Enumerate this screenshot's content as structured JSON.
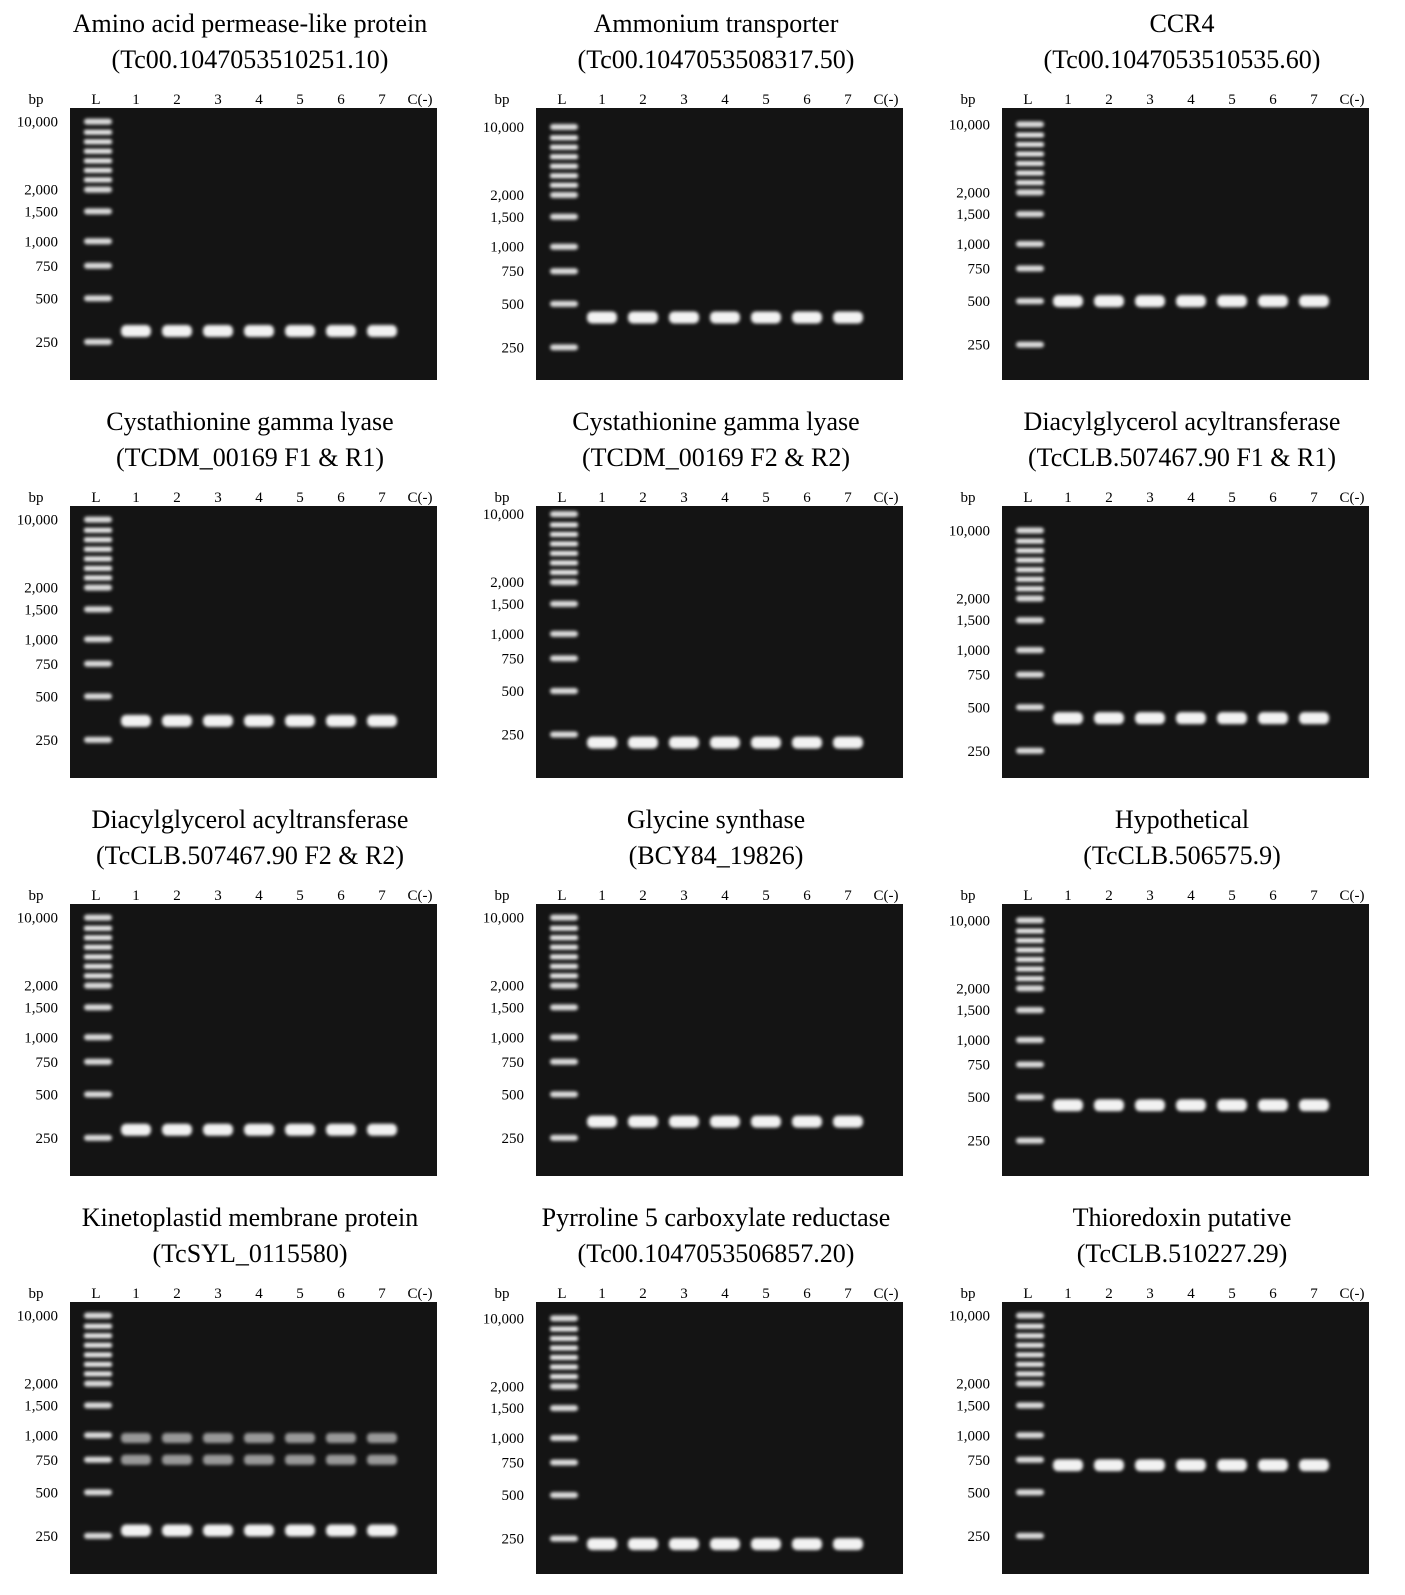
{
  "panels": [
    {
      "title": [
        "Amino acid permease-like protein",
        "(Tc00.1047053510251.10)"
      ],
      "bp_header": "bp",
      "lanes": [
        "L",
        "1",
        "2",
        "3",
        "4",
        "5",
        "6",
        "7",
        "C(-)"
      ],
      "bp_labels": [
        "10,000",
        "2,000",
        "1,500",
        "1,000",
        "750",
        "500",
        "250"
      ]
    },
    {
      "title": [
        "Ammonium transporter",
        "(Tc00.1047053508317.50)"
      ],
      "bp_header": "bp",
      "lanes": [
        "L",
        "1",
        "2",
        "3",
        "4",
        "5",
        "6",
        "7",
        "C(-)"
      ],
      "bp_labels": [
        "10,000",
        "2,000",
        "1,500",
        "1,000",
        "750",
        "500",
        "250"
      ]
    },
    {
      "title": [
        "CCR4",
        "(Tc00.1047053510535.60)"
      ],
      "bp_header": "bp",
      "lanes": [
        "L",
        "1",
        "2",
        "3",
        "4",
        "5",
        "6",
        "7",
        "C(-)"
      ],
      "bp_labels": [
        "10,000",
        "2,000",
        "1,500",
        "1,000",
        "750",
        "500",
        "250"
      ]
    },
    {
      "title": [
        "Cystathionine gamma lyase",
        "(TCDM_00169 F1 & R1)"
      ],
      "bp_header": "bp",
      "lanes": [
        "L",
        "1",
        "2",
        "3",
        "4",
        "5",
        "6",
        "7",
        "C(-)"
      ],
      "bp_labels": [
        "10,000",
        "2,000",
        "1,500",
        "1,000",
        "750",
        "500",
        "250"
      ]
    },
    {
      "title": [
        "Cystathionine gamma lyase",
        "(TCDM_00169 F2 & R2)"
      ],
      "bp_header": "bp",
      "lanes": [
        "L",
        "1",
        "2",
        "3",
        "4",
        "5",
        "6",
        "7",
        "C(-)"
      ],
      "bp_labels": [
        "10,000",
        "2,000",
        "1,500",
        "1,000",
        "750",
        "500",
        "250"
      ]
    },
    {
      "title": [
        "Diacylglycerol acyltransferase",
        "(TcCLB.507467.90 F1 & R1)"
      ],
      "bp_header": "bp",
      "lanes": [
        "L",
        "1",
        "2",
        "3",
        "4",
        "5",
        "6",
        "7",
        "C(-)"
      ],
      "bp_labels": [
        "10,000",
        "2,000",
        "1,500",
        "1,000",
        "750",
        "500",
        "250"
      ]
    },
    {
      "title": [
        "Diacylglycerol acyltransferase",
        "(TcCLB.507467.90 F2 & R2)"
      ],
      "bp_header": "bp",
      "lanes": [
        "L",
        "1",
        "2",
        "3",
        "4",
        "5",
        "6",
        "7",
        "C(-)"
      ],
      "bp_labels": [
        "10,000",
        "2,000",
        "1,500",
        "1,000",
        "750",
        "500",
        "250"
      ]
    },
    {
      "title": [
        "Glycine synthase",
        "(BCY84_19826)"
      ],
      "bp_header": "bp",
      "lanes": [
        "L",
        "1",
        "2",
        "3",
        "4",
        "5",
        "6",
        "7",
        "C(-)"
      ],
      "bp_labels": [
        "10,000",
        "2,000",
        "1,500",
        "1,000",
        "750",
        "500",
        "250"
      ]
    },
    {
      "title": [
        "Hypothetical",
        "(TcCLB.506575.9)"
      ],
      "bp_header": "bp",
      "lanes": [
        "L",
        "1",
        "2",
        "3",
        "4",
        "5",
        "6",
        "7",
        "C(-)"
      ],
      "bp_labels": [
        "10,000",
        "2,000",
        "1,500",
        "1,000",
        "750",
        "500",
        "250"
      ]
    },
    {
      "title": [
        "Kinetoplastid membrane protein",
        "(TcSYL_0115580)"
      ],
      "bp_header": "bp",
      "lanes": [
        "L",
        "1",
        "2",
        "3",
        "4",
        "5",
        "6",
        "7",
        "C(-)"
      ],
      "bp_labels": [
        "10,000",
        "2,000",
        "1,500",
        "1,000",
        "750",
        "500",
        "250"
      ]
    },
    {
      "title": [
        "Pyrroline 5 carboxylate reductase",
        "(Tc00.1047053506857.20)"
      ],
      "bp_header": "bp",
      "lanes": [
        "L",
        "1",
        "2",
        "3",
        "4",
        "5",
        "6",
        "7",
        "C(-)"
      ],
      "bp_labels": [
        "10,000",
        "2,000",
        "1,500",
        "1,000",
        "750",
        "500",
        "250"
      ]
    },
    {
      "title": [
        "Thioredoxin putative",
        "(TcCLB.510227.29)"
      ],
      "bp_header": "bp",
      "lanes": [
        "L",
        "1",
        "2",
        "3",
        "4",
        "5",
        "6",
        "7",
        "C(-)"
      ],
      "bp_labels": [
        "10,000",
        "2,000",
        "1,500",
        "1,000",
        "750",
        "500",
        "250"
      ]
    }
  ]
}
